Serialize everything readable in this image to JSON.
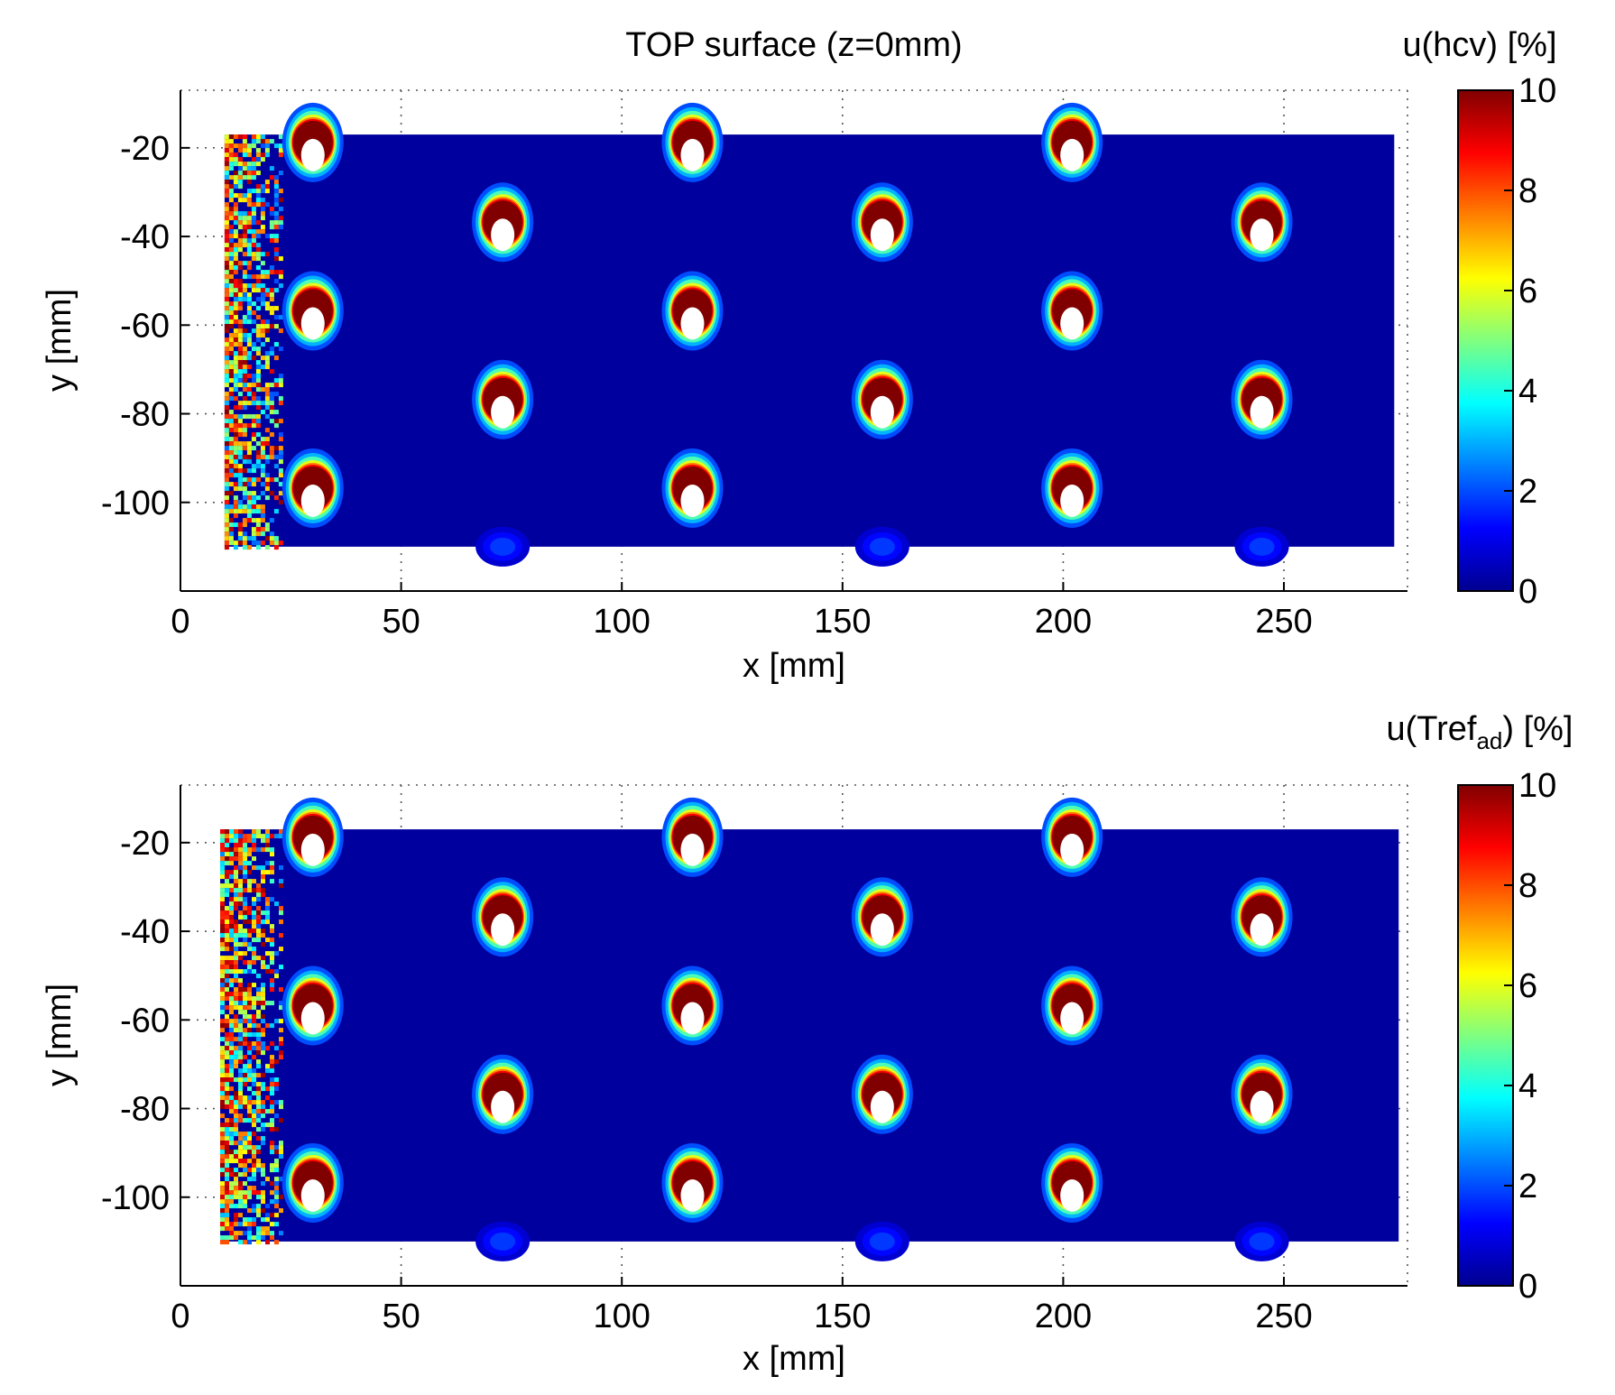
{
  "chart_data": [
    {
      "type": "heatmap",
      "title": "TOP surface (z=0mm)",
      "xlabel": "x [mm]",
      "ylabel": "y [mm]",
      "xlim": [
        0,
        278
      ],
      "ylim": [
        -120,
        -7
      ],
      "data_extent": {
        "x": [
          10,
          275
        ],
        "y": [
          -110,
          -17
        ]
      },
      "xticks": [
        0,
        50,
        100,
        150,
        200,
        250
      ],
      "yticks": [
        -20,
        -40,
        -60,
        -80,
        -100
      ],
      "grid": true,
      "colorbar": {
        "label": "u(hcv) [%]",
        "label_main": "u(hcv) [%]",
        "label_sub": "",
        "label_tail": "",
        "min": 0,
        "max": 10,
        "ticks": [
          0,
          2,
          4,
          6,
          8,
          10
        ]
      },
      "background_value": 0.3,
      "hotspots": [
        {
          "x": 30,
          "y": -20,
          "peak": 10
        },
        {
          "x": 116,
          "y": -20,
          "peak": 10
        },
        {
          "x": 202,
          "y": -20,
          "peak": 10
        },
        {
          "x": 73,
          "y": -38,
          "peak": 10
        },
        {
          "x": 159,
          "y": -38,
          "peak": 10
        },
        {
          "x": 245,
          "y": -38,
          "peak": 10
        },
        {
          "x": 30,
          "y": -58,
          "peak": 10
        },
        {
          "x": 116,
          "y": -58,
          "peak": 10
        },
        {
          "x": 202,
          "y": -58,
          "peak": 10
        },
        {
          "x": 73,
          "y": -78,
          "peak": 10
        },
        {
          "x": 159,
          "y": -78,
          "peak": 10
        },
        {
          "x": 245,
          "y": -78,
          "peak": 10
        },
        {
          "x": 30,
          "y": -98,
          "peak": 10
        },
        {
          "x": 116,
          "y": -98,
          "peak": 10
        },
        {
          "x": 202,
          "y": -98,
          "peak": 10
        },
        {
          "x": 73,
          "y": -110,
          "peak": 2
        },
        {
          "x": 159,
          "y": -110,
          "peak": 2
        },
        {
          "x": 245,
          "y": -110,
          "peak": 2
        }
      ],
      "noisy_edge": {
        "x": [
          10,
          23
        ],
        "value_range": [
          2,
          10
        ]
      }
    },
    {
      "type": "heatmap",
      "title": "",
      "xlabel": "x [mm]",
      "ylabel": "y [mm]",
      "xlim": [
        0,
        278
      ],
      "ylim": [
        -120,
        -7
      ],
      "data_extent": {
        "x": [
          9,
          276
        ],
        "y": [
          -110,
          -17
        ]
      },
      "xticks": [
        0,
        50,
        100,
        150,
        200,
        250
      ],
      "yticks": [
        -20,
        -40,
        -60,
        -80,
        -100
      ],
      "grid": true,
      "colorbar": {
        "label": "u(Tref_ad) [%]",
        "label_main": "u(Tref",
        "label_sub": "ad",
        "label_tail": ") [%]",
        "min": 0,
        "max": 10,
        "ticks": [
          0,
          2,
          4,
          6,
          8,
          10
        ]
      },
      "background_value": 0.3,
      "hotspots": [
        {
          "x": 30,
          "y": -20,
          "peak": 10
        },
        {
          "x": 116,
          "y": -20,
          "peak": 10
        },
        {
          "x": 202,
          "y": -20,
          "peak": 10
        },
        {
          "x": 73,
          "y": -38,
          "peak": 10
        },
        {
          "x": 159,
          "y": -38,
          "peak": 10
        },
        {
          "x": 245,
          "y": -38,
          "peak": 10
        },
        {
          "x": 30,
          "y": -58,
          "peak": 10
        },
        {
          "x": 116,
          "y": -58,
          "peak": 10
        },
        {
          "x": 202,
          "y": -58,
          "peak": 10
        },
        {
          "x": 73,
          "y": -78,
          "peak": 10
        },
        {
          "x": 159,
          "y": -78,
          "peak": 10
        },
        {
          "x": 245,
          "y": -78,
          "peak": 10
        },
        {
          "x": 30,
          "y": -98,
          "peak": 10
        },
        {
          "x": 116,
          "y": -98,
          "peak": 10
        },
        {
          "x": 202,
          "y": -98,
          "peak": 10
        },
        {
          "x": 73,
          "y": -110,
          "peak": 2
        },
        {
          "x": 159,
          "y": -110,
          "peak": 2
        },
        {
          "x": 245,
          "y": -110,
          "peak": 2
        }
      ],
      "noisy_edge": {
        "x": [
          9,
          23
        ],
        "value_range": [
          2,
          10
        ]
      }
    }
  ]
}
